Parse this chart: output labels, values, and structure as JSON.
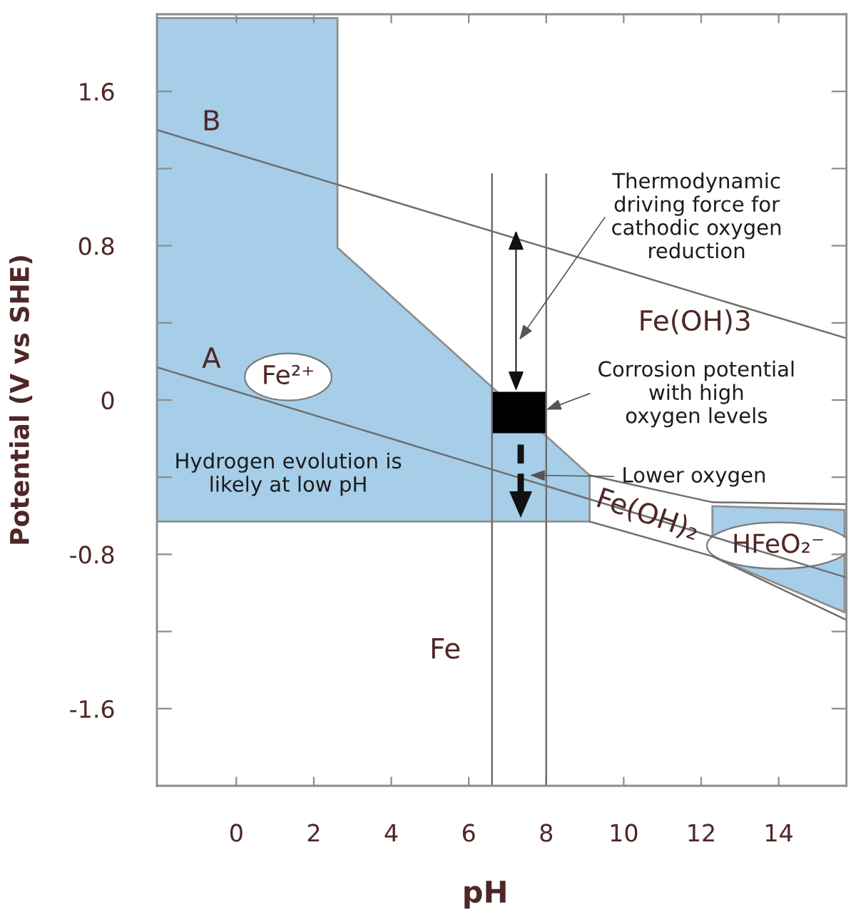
{
  "chart_data": {
    "type": "line",
    "xlabel": "pH",
    "ylabel": "Potential (V vs SHE)",
    "xlim": [
      -2.05,
      15.75
    ],
    "ylim": [
      -2,
      2
    ],
    "xticks": [
      0,
      2,
      4,
      6,
      8,
      10,
      12,
      14
    ],
    "yticks": [
      -1.6,
      {
        "value": -1.2,
        "label": null
      },
      -0.8,
      {
        "value": -0.4,
        "label": null
      },
      0,
      {
        "value": 0.4,
        "label": null
      },
      0.8,
      {
        "value": 1.2,
        "label": null
      },
      1.6
    ],
    "series": [
      {
        "type": "area",
        "color": "#a6cee9",
        "x": [
          -2.05,
          2.61,
          2.61,
          9.12,
          9.12,
          -2.05
        ],
        "values": [
          1.98,
          1.98,
          0.79,
          -0.39,
          -0.63,
          -0.63
        ]
      },
      {
        "type": "area",
        "color": "#a6cee9",
        "x": [
          12.29,
          15.7,
          15.7,
          12.29
        ],
        "values": [
          -0.55,
          -0.57,
          -1.1,
          -0.81
        ]
      },
      {
        "name": "B",
        "color": "#6f6f6f",
        "x": [
          -2.05,
          15.75
        ],
        "values": [
          1.4,
          0.32
        ]
      },
      {
        "name": "A",
        "color": "#6f6f6f",
        "x": [
          -2.05,
          15.75
        ],
        "values": [
          0.17,
          -0.92
        ]
      },
      {
        "color": "#6f6f6f",
        "x": [
          9.12,
          12.29,
          15.75
        ],
        "values": [
          -0.39,
          -0.53,
          -0.54
        ]
      },
      {
        "color": "#6f6f6f",
        "x": [
          9.12,
          12.29,
          15.75
        ],
        "values": [
          -0.63,
          -0.81,
          -1.14
        ]
      },
      {
        "type": "scatter",
        "marker": "square",
        "color": "#000000",
        "x": [
          7.3
        ],
        "values": [
          -0.065
        ]
      }
    ],
    "ref_lines": [
      {
        "axis": "x",
        "value": 6.6,
        "color": "#6f6f6f"
      },
      {
        "axis": "x",
        "value": 8,
        "color": "#6f6f6f"
      }
    ],
    "annotations": [
      "Fe²⁺",
      "Hydrogen evolution is\nlikely at low pH",
      "Thermodynamic\ndriving force for\ncathodic oxygen\nreduction",
      "Fe(OH)3",
      {
        "text": "Corrosion potential\nwith high\noxygen levels",
        "x": 8,
        "y": -0.05
      },
      {
        "text": "Lower oxygen",
        "x": 7.58,
        "y": -0.39
      },
      "Fe(OH)₂",
      "HFeO₂⁻",
      "Fe"
    ]
  }
}
